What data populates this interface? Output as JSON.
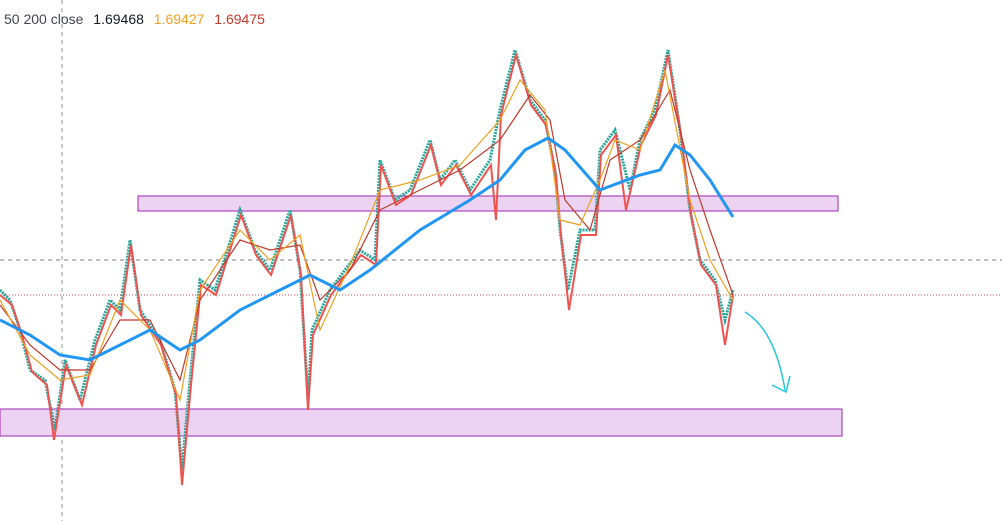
{
  "legend": {
    "label": "50 200 close",
    "values": [
      {
        "text": "1.69468",
        "color": "#131722"
      },
      {
        "text": "1.69427",
        "color": "#f0a020"
      },
      {
        "text": "1.69475",
        "color": "#c0392b"
      }
    ]
  }
}
